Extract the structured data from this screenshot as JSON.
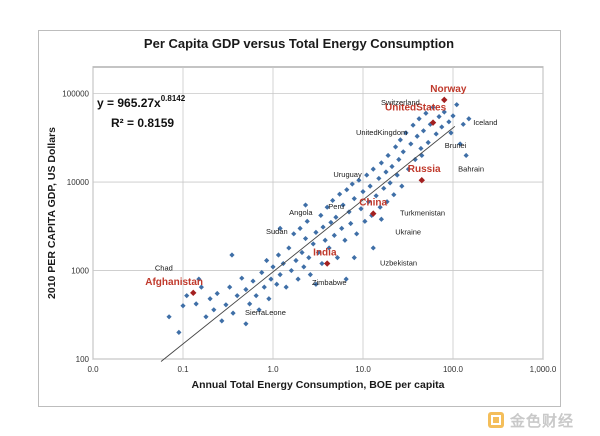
{
  "chart_data": {
    "type": "scatter",
    "title": "Per Capita GDP versus Total Energy Consumption",
    "xlabel": "Annual Total Energy Consumption, BOE per capita",
    "ylabel": "2010 PER CAPITA GDP, US Dollars",
    "x_scale": "log",
    "y_scale": "log",
    "xlim": [
      0.01,
      1000
    ],
    "ylim": [
      100,
      200000
    ],
    "x_tick_values": [
      0.01,
      0.1,
      1,
      10,
      100,
      1000
    ],
    "x_tick_labels": [
      "0.0",
      "0.1",
      "1.0",
      "10.0",
      "100.0",
      "1,000.0"
    ],
    "y_tick_values": [
      100,
      1000,
      10000,
      100000
    ],
    "y_tick_labels": [
      "100",
      "1000",
      "10000",
      "100000"
    ],
    "grid": true,
    "trendline": {
      "equation_prefix": "y = 965.27x",
      "equation_exponent": "0.8142",
      "r_squared": "R² = 0.8159",
      "coef": 965.27,
      "exponent": 0.8142,
      "x_range": [
        0.057,
        105
      ]
    },
    "labeled_points": [
      {
        "name": "Norway",
        "x": 80,
        "y": 85000,
        "highlight": true
      },
      {
        "name": "UnitedStates",
        "x": 60,
        "y": 47000,
        "highlight": true
      },
      {
        "name": "Russia",
        "x": 45,
        "y": 10500,
        "highlight": true
      },
      {
        "name": "China",
        "x": 13,
        "y": 4400,
        "highlight": true
      },
      {
        "name": "India",
        "x": 4,
        "y": 1200,
        "highlight": true
      },
      {
        "name": "Afghanistan",
        "x": 0.13,
        "y": 560,
        "highlight": true
      },
      {
        "name": "Switzerland",
        "x": 60,
        "y": 67000,
        "highlight": false
      },
      {
        "name": "Iceland",
        "x": 130,
        "y": 40000,
        "highlight": false
      },
      {
        "name": "UnitedKingdom",
        "x": 35,
        "y": 36000,
        "highlight": false
      },
      {
        "name": "Brunei",
        "x": 110,
        "y": 30000,
        "highlight": false
      },
      {
        "name": "Bahrain",
        "x": 140,
        "y": 17000,
        "highlight": false
      },
      {
        "name": "Uruguay",
        "x": 16,
        "y": 12000,
        "highlight": false
      },
      {
        "name": "Peru",
        "x": 8,
        "y": 5200,
        "highlight": false
      },
      {
        "name": "Angola",
        "x": 4,
        "y": 4500,
        "highlight": false
      },
      {
        "name": "Turkmenistan",
        "x": 30,
        "y": 4000,
        "highlight": false
      },
      {
        "name": "Ukraine",
        "x": 28,
        "y": 3000,
        "highlight": false
      },
      {
        "name": "Sudan",
        "x": 1.8,
        "y": 2100,
        "highlight": false
      },
      {
        "name": "Uzbekistan",
        "x": 18,
        "y": 1400,
        "highlight": false
      },
      {
        "name": "Chad",
        "x": 0.09,
        "y": 900,
        "highlight": false
      },
      {
        "name": "Zimbabwe",
        "x": 3,
        "y": 800,
        "highlight": false
      },
      {
        "name": "SierraLeone",
        "x": 0.6,
        "y": 350,
        "highlight": false
      }
    ],
    "points": [
      [
        0.07,
        300
      ],
      [
        0.09,
        200
      ],
      [
        0.1,
        400
      ],
      [
        0.11,
        520
      ],
      [
        0.14,
        420
      ],
      [
        0.16,
        650
      ],
      [
        0.18,
        300
      ],
      [
        0.2,
        480
      ],
      [
        0.22,
        360
      ],
      [
        0.24,
        550
      ],
      [
        0.27,
        270
      ],
      [
        0.3,
        410
      ],
      [
        0.33,
        650
      ],
      [
        0.36,
        330
      ],
      [
        0.4,
        520
      ],
      [
        0.45,
        820
      ],
      [
        0.5,
        250
      ],
      [
        0.5,
        610
      ],
      [
        0.55,
        420
      ],
      [
        0.6,
        760
      ],
      [
        0.65,
        520
      ],
      [
        0.7,
        360
      ],
      [
        0.75,
        950
      ],
      [
        0.8,
        650
      ],
      [
        0.85,
        1300
      ],
      [
        0.9,
        480
      ],
      [
        0.95,
        800
      ],
      [
        1.0,
        1100
      ],
      [
        1.1,
        700
      ],
      [
        1.15,
        1500
      ],
      [
        1.2,
        900
      ],
      [
        1.3,
        1200
      ],
      [
        1.4,
        650
      ],
      [
        1.5,
        1800
      ],
      [
        1.6,
        1000
      ],
      [
        1.7,
        2600
      ],
      [
        1.8,
        1300
      ],
      [
        1.9,
        800
      ],
      [
        2.0,
        3000
      ],
      [
        2.1,
        1600
      ],
      [
        2.2,
        1100
      ],
      [
        2.3,
        2300
      ],
      [
        2.4,
        3600
      ],
      [
        2.5,
        1400
      ],
      [
        2.6,
        900
      ],
      [
        2.8,
        2000
      ],
      [
        3.0,
        2700
      ],
      [
        3.2,
        1600
      ],
      [
        3.4,
        4200
      ],
      [
        3.5,
        1200
      ],
      [
        3.6,
        3100
      ],
      [
        3.8,
        2200
      ],
      [
        4.0,
        5200
      ],
      [
        4.2,
        1800
      ],
      [
        4.4,
        3500
      ],
      [
        4.6,
        6200
      ],
      [
        4.8,
        2500
      ],
      [
        5.0,
        4000
      ],
      [
        5.2,
        1400
      ],
      [
        5.5,
        7300
      ],
      [
        5.8,
        3000
      ],
      [
        6.0,
        5500
      ],
      [
        6.3,
        2200
      ],
      [
        6.6,
        8200
      ],
      [
        7.0,
        4600
      ],
      [
        7.3,
        3400
      ],
      [
        7.6,
        9500
      ],
      [
        8.0,
        6500
      ],
      [
        8.5,
        2600
      ],
      [
        9.0,
        10500
      ],
      [
        9.5,
        5000
      ],
      [
        10.0,
        7800
      ],
      [
        10.5,
        3600
      ],
      [
        11.0,
        12000
      ],
      [
        11.5,
        6000
      ],
      [
        12.0,
        9000
      ],
      [
        12.5,
        4200
      ],
      [
        13.0,
        14000
      ],
      [
        14.0,
        7000
      ],
      [
        15.0,
        11000
      ],
      [
        15.5,
        5200
      ],
      [
        16.0,
        16500
      ],
      [
        17.0,
        8500
      ],
      [
        18.0,
        13000
      ],
      [
        18.5,
        6000
      ],
      [
        19.0,
        20000
      ],
      [
        20.0,
        9800
      ],
      [
        21.0,
        15000
      ],
      [
        22.0,
        7200
      ],
      [
        23.0,
        25000
      ],
      [
        24.0,
        12000
      ],
      [
        25.0,
        18000
      ],
      [
        26.0,
        30000
      ],
      [
        27.0,
        9000
      ],
      [
        28.0,
        22000
      ],
      [
        30.0,
        36000
      ],
      [
        32.0,
        14000
      ],
      [
        34.0,
        27000
      ],
      [
        36.0,
        44000
      ],
      [
        38.0,
        18000
      ],
      [
        40.0,
        33000
      ],
      [
        42.0,
        52000
      ],
      [
        44.0,
        24000
      ],
      [
        47.0,
        38000
      ],
      [
        50.0,
        60000
      ],
      [
        53.0,
        28000
      ],
      [
        56.0,
        45000
      ],
      [
        60.0,
        70000
      ],
      [
        65.0,
        35000
      ],
      [
        70.0,
        55000
      ],
      [
        75.0,
        42000
      ],
      [
        80.0,
        62000
      ],
      [
        90.0,
        48000
      ],
      [
        95.0,
        36000
      ],
      [
        100.0,
        56000
      ],
      [
        110.0,
        75000
      ],
      [
        120.0,
        27000
      ],
      [
        130.0,
        45000
      ],
      [
        140.0,
        20000
      ],
      [
        150.0,
        52000
      ],
      [
        2.3,
        5500
      ],
      [
        1.2,
        3000
      ],
      [
        6.5,
        800
      ],
      [
        8.0,
        1400
      ],
      [
        13.0,
        1800
      ],
      [
        0.35,
        1500
      ],
      [
        0.15,
        800
      ],
      [
        3.0,
        700
      ],
      [
        16.0,
        3800
      ],
      [
        45.0,
        20000
      ]
    ]
  }
}
